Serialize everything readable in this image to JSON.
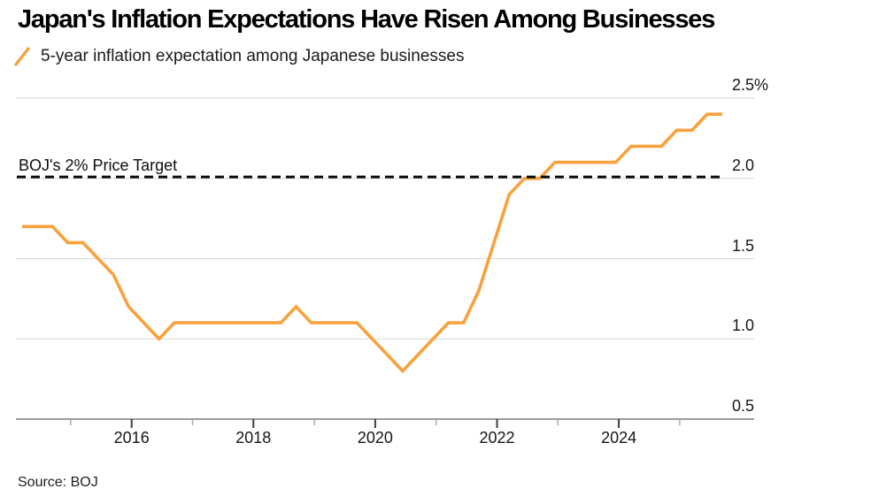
{
  "title": "Japan's Inflation Expectations Have Risen Among Businesses",
  "legend": {
    "series_label": "5-year inflation expectation among Japanese businesses"
  },
  "source": "Source: BOJ",
  "chart_data": {
    "type": "line",
    "unit": "%",
    "frequency": "quarterly",
    "series": [
      {
        "name": "5-year inflation expectation among Japanese businesses",
        "start_period": "2014 Q1",
        "end_period": "2025 Q3",
        "values": [
          1.7,
          1.7,
          1.7,
          1.6,
          1.6,
          1.5,
          1.4,
          1.2,
          1.1,
          1.0,
          1.1,
          1.1,
          1.1,
          1.1,
          1.1,
          1.1,
          1.1,
          1.1,
          1.2,
          1.1,
          1.1,
          1.1,
          1.1,
          1.0,
          0.9,
          0.8,
          0.9,
          1.0,
          1.1,
          1.1,
          1.3,
          1.6,
          1.9,
          2.0,
          2.0,
          2.1,
          2.1,
          2.1,
          2.1,
          2.1,
          2.2,
          2.2,
          2.2,
          2.3,
          2.3,
          2.4,
          2.4
        ]
      }
    ],
    "x_axis": {
      "start_year": 2014,
      "major_ticks": [
        {
          "year": 2016,
          "label": "2016"
        },
        {
          "year": 2018,
          "label": "2018"
        },
        {
          "year": 2020,
          "label": "2020"
        },
        {
          "year": 2022,
          "label": "2022"
        },
        {
          "year": 2024,
          "label": "2024"
        }
      ],
      "minor_tick_years": [
        2015,
        2017,
        2019,
        2021,
        2023,
        2025
      ]
    },
    "y_axis": {
      "min": 0.5,
      "max": 2.5,
      "ticks": [
        {
          "value": 2.5,
          "label": "2.5%"
        },
        {
          "value": 2.0,
          "label": "2.0"
        },
        {
          "value": 1.5,
          "label": "1.5"
        },
        {
          "value": 1.0,
          "label": "1.0"
        },
        {
          "value": 0.5,
          "label": "0.5"
        }
      ]
    },
    "target_line": {
      "label": "BOJ's 2% Price Target",
      "value": 2.0,
      "style": "dashed"
    },
    "colors": {
      "line": "#F9A13C",
      "grid": "#d7d7d7",
      "axis": "#9c9c9c",
      "major_tick": "#3d3d3d",
      "minor_tick": "#ababab",
      "target": "#0a0a0a"
    },
    "legend_position": "top-left",
    "grid": "horizontal"
  }
}
